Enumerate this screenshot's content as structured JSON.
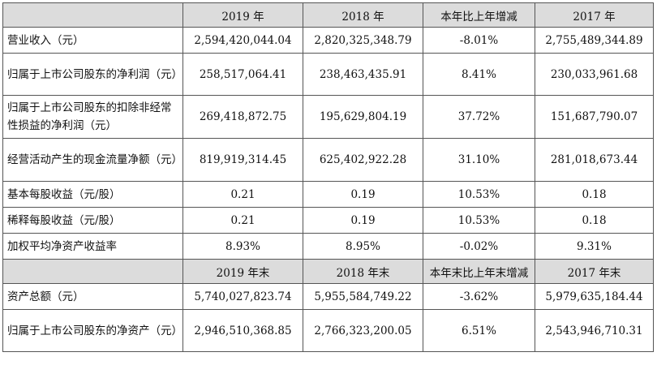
{
  "header1": [
    "",
    "2019 年",
    "2018 年",
    "本年比上年增减",
    "2017 年"
  ],
  "rows1": [
    {
      "label": "营业收入（元）",
      "values": [
        "2,594,420,044.04",
        "2,820,325,348.79",
        "-8.01%",
        "2,755,489,344.89"
      ]
    },
    {
      "label": "归属于上市公司股东的净利润（元）",
      "values": [
        "258,517,064.41",
        "238,463,435.91",
        "8.41%",
        "230,033,961.68"
      ]
    },
    {
      "label": "归属于上市公司股东的扣除非经常性损益的净利润（元）",
      "values": [
        "269,418,872.75",
        "195,629,804.19",
        "37.72%",
        "151,687,790.07"
      ]
    },
    {
      "label": "经营活动产生的现金流量净额（元）",
      "values": [
        "819,919,314.45",
        "625,402,922.28",
        "31.10%",
        "281,018,673.44"
      ]
    },
    {
      "label": "基本每股收益（元/股）",
      "values": [
        "0.21",
        "0.19",
        "10.53%",
        "0.18"
      ]
    },
    {
      "label": "稀释每股收益（元/股）",
      "values": [
        "0.21",
        "0.19",
        "10.53%",
        "0.18"
      ]
    },
    {
      "label": "加权平均净资产收益率",
      "values": [
        "8.93%",
        "8.95%",
        "-0.02%",
        "9.31%"
      ]
    }
  ],
  "header2": [
    "",
    "2019 年末",
    "2018 年末",
    "本年末比上年末增减",
    "2017 年末"
  ],
  "rows2": [
    {
      "label": "资产总额（元）",
      "values": [
        "5,740,027,823.74",
        "5,955,584,749.22",
        "-3.62%",
        "5,979,635,184.44"
      ]
    },
    {
      "label": "归属于上市公司股东的净资产（元）",
      "values": [
        "2,946,510,368.85",
        "2,766,323,200.05",
        "6.51%",
        "2,543,946,710.31"
      ]
    }
  ]
}
